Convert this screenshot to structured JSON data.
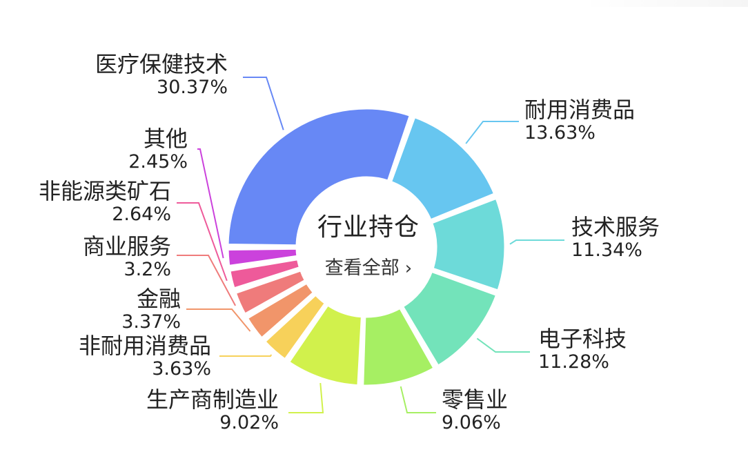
{
  "center": {
    "title": "行业持仓",
    "link_label": "查看全部",
    "link_chevron": "›"
  },
  "chart_data": {
    "type": "pie",
    "title": "行业持仓",
    "slices": [
      {
        "name": "医疗保健技术",
        "value": 30.37,
        "label_pct": "30.37%",
        "color": "#6788F5"
      },
      {
        "name": "耐用消费品",
        "value": 13.63,
        "label_pct": "13.63%",
        "color": "#67C6F0"
      },
      {
        "name": "技术服务",
        "value": 11.34,
        "label_pct": "11.34%",
        "color": "#6DDAD9"
      },
      {
        "name": "电子科技",
        "value": 11.28,
        "label_pct": "11.28%",
        "color": "#73E3BA"
      },
      {
        "name": "零售业",
        "value": 9.06,
        "label_pct": "9.06%",
        "color": "#A6EF63"
      },
      {
        "name": "生产商制造业",
        "value": 9.02,
        "label_pct": "9.02%",
        "color": "#D1F14C"
      },
      {
        "name": "非耐用消费品",
        "value": 3.63,
        "label_pct": "3.63%",
        "color": "#F7D15A"
      },
      {
        "name": "金融",
        "value": 3.37,
        "label_pct": "3.37%",
        "color": "#F1956A"
      },
      {
        "name": "商业服务",
        "value": 3.2,
        "label_pct": "3.2%",
        "color": "#EF7B7B"
      },
      {
        "name": "非能源类矿石",
        "value": 2.64,
        "label_pct": "2.64%",
        "color": "#EE5A9A"
      },
      {
        "name": "其他",
        "value": 2.45,
        "label_pct": "2.45%",
        "color": "#CB42DC"
      }
    ]
  }
}
